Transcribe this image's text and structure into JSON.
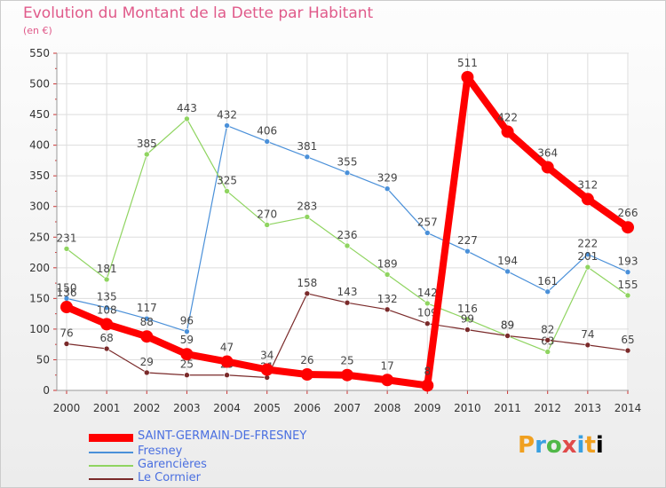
{
  "chart_data": {
    "type": "line",
    "title": "Evolution du Montant de la Dette par Habitant",
    "subtitle": "(en €)",
    "x": [
      "2000",
      "2001",
      "2002",
      "2003",
      "2004",
      "2005",
      "2006",
      "2007",
      "2008",
      "2009",
      "2010",
      "2011",
      "2012",
      "2013",
      "2014"
    ],
    "ylim": [
      0,
      550
    ],
    "yticks": [
      0,
      50,
      100,
      150,
      200,
      250,
      300,
      350,
      400,
      450,
      500,
      550
    ],
    "grid": true,
    "legend_position": "bottom-left",
    "series": [
      {
        "name": "SAINT-GERMAIN-DE-FRESNEY",
        "color": "#ff0000",
        "emphasis": true,
        "values": [
          136,
          108,
          88,
          59,
          47,
          34,
          26,
          25,
          17,
          8,
          511,
          422,
          364,
          312,
          266
        ]
      },
      {
        "name": "Fresney",
        "color": "#4a90d9",
        "values": [
          150,
          135,
          117,
          96,
          432,
          406,
          381,
          355,
          329,
          257,
          227,
          194,
          161,
          222,
          193
        ]
      },
      {
        "name": "Garencières",
        "color": "#8fd460",
        "values": [
          231,
          181,
          385,
          443,
          325,
          270,
          283,
          236,
          189,
          142,
          116,
          89,
          63,
          201,
          155
        ]
      },
      {
        "name": "Le Cormier",
        "color": "#7a2a2a",
        "values": [
          76,
          68,
          29,
          25,
          25,
          21,
          158,
          143,
          132,
          109,
          99,
          89,
          82,
          74,
          65
        ]
      }
    ]
  },
  "brand": {
    "letters": [
      "P",
      "r",
      "o",
      "x",
      "i",
      "t",
      "i"
    ]
  }
}
